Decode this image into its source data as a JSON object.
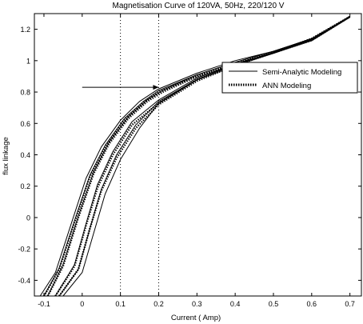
{
  "chart_data": {
    "type": "line",
    "title": "Magnetisation Curve of 120VA, 50Hz, 220/120 V",
    "xlabel": "Current ( Amp)",
    "ylabel": "flux linkage",
    "xlim": [
      -0.125,
      0.73
    ],
    "ylim": [
      -0.5,
      1.3
    ],
    "xticks": [
      -0.1,
      0,
      0.1,
      0.2,
      0.3,
      0.4,
      0.5,
      0.6,
      0.7
    ],
    "xtick_labels": [
      "-0.1",
      "0",
      "0.1",
      "0.2",
      "0.3",
      "0.4",
      "0.5",
      "0.6",
      "0.7"
    ],
    "yticks": [
      -0.4,
      -0.2,
      0,
      0.2,
      0.4,
      0.6,
      0.8,
      1,
      1.2
    ],
    "ytick_labels": [
      "-0.4",
      "-0.2",
      "0",
      "0.2",
      "0.4",
      "0.6",
      "0.8",
      "1",
      "1.2"
    ],
    "vlines": [
      0.1,
      0.2
    ],
    "annotation_arrow": {
      "from": [
        0,
        0.83
      ],
      "to": [
        0.2,
        0.83
      ]
    },
    "legend_position": "right",
    "grid": false,
    "series": [
      {
        "name": "Semi-Analytic Modeling",
        "style": "solid",
        "color": "#000000",
        "loops": [
          {
            "upper": [
              [
                -0.11,
                -0.5
              ],
              [
                -0.07,
                -0.35
              ],
              [
                -0.03,
                -0.05
              ],
              [
                0.01,
                0.25
              ],
              [
                0.05,
                0.45
              ],
              [
                0.1,
                0.62
              ],
              [
                0.15,
                0.74
              ],
              [
                0.2,
                0.82
              ],
              [
                0.3,
                0.92
              ],
              [
                0.4,
                1.0
              ],
              [
                0.5,
                1.06
              ],
              [
                0.6,
                1.14
              ],
              [
                0.7,
                1.28
              ]
            ],
            "lower": [
              [
                -0.05,
                -0.5
              ],
              [
                0.0,
                -0.35
              ],
              [
                0.03,
                -0.1
              ],
              [
                0.06,
                0.15
              ],
              [
                0.1,
                0.37
              ],
              [
                0.15,
                0.57
              ],
              [
                0.2,
                0.73
              ],
              [
                0.3,
                0.88
              ],
              [
                0.4,
                0.98
              ],
              [
                0.5,
                1.05
              ],
              [
                0.6,
                1.13
              ],
              [
                0.7,
                1.28
              ]
            ]
          },
          {
            "upper": [
              [
                -0.1,
                -0.5
              ],
              [
                -0.06,
                -0.32
              ],
              [
                -0.02,
                -0.02
              ],
              [
                0.02,
                0.27
              ],
              [
                0.06,
                0.46
              ],
              [
                0.11,
                0.63
              ],
              [
                0.16,
                0.74
              ],
              [
                0.2,
                0.81
              ],
              [
                0.3,
                0.91
              ],
              [
                0.4,
                0.99
              ],
              [
                0.5,
                1.06
              ],
              [
                0.6,
                1.14
              ],
              [
                0.7,
                1.28
              ]
            ],
            "lower": [
              [
                -0.06,
                -0.5
              ],
              [
                -0.01,
                -0.33
              ],
              [
                0.02,
                -0.07
              ],
              [
                0.05,
                0.18
              ],
              [
                0.09,
                0.4
              ],
              [
                0.14,
                0.59
              ],
              [
                0.2,
                0.74
              ],
              [
                0.3,
                0.88
              ],
              [
                0.4,
                0.98
              ],
              [
                0.5,
                1.05
              ],
              [
                0.6,
                1.13
              ],
              [
                0.7,
                1.28
              ]
            ]
          },
          {
            "upper": [
              [
                -0.09,
                -0.5
              ],
              [
                -0.05,
                -0.3
              ],
              [
                -0.01,
                0.01
              ],
              [
                0.03,
                0.29
              ],
              [
                0.07,
                0.48
              ],
              [
                0.12,
                0.64
              ],
              [
                0.17,
                0.75
              ],
              [
                0.21,
                0.81
              ],
              [
                0.3,
                0.91
              ],
              [
                0.4,
                0.99
              ],
              [
                0.5,
                1.06
              ],
              [
                0.6,
                1.14
              ],
              [
                0.7,
                1.28
              ]
            ],
            "lower": [
              [
                -0.07,
                -0.5
              ],
              [
                -0.02,
                -0.3
              ],
              [
                0.01,
                -0.04
              ],
              [
                0.04,
                0.21
              ],
              [
                0.08,
                0.42
              ],
              [
                0.13,
                0.61
              ],
              [
                0.2,
                0.75
              ],
              [
                0.3,
                0.89
              ],
              [
                0.4,
                0.98
              ],
              [
                0.5,
                1.05
              ],
              [
                0.6,
                1.13
              ],
              [
                0.7,
                1.28
              ]
            ]
          }
        ]
      },
      {
        "name": "ANN Modeling",
        "style": "dotted",
        "color": "#000000",
        "loops": [
          {
            "upper": [
              [
                -0.1,
                -0.5
              ],
              [
                -0.06,
                -0.33
              ],
              [
                -0.02,
                -0.03
              ],
              [
                0.02,
                0.26
              ],
              [
                0.06,
                0.45
              ],
              [
                0.11,
                0.62
              ],
              [
                0.16,
                0.73
              ],
              [
                0.2,
                0.8
              ],
              [
                0.3,
                0.9
              ],
              [
                0.4,
                0.98
              ],
              [
                0.5,
                1.05
              ],
              [
                0.6,
                1.14
              ],
              [
                0.7,
                1.28
              ]
            ],
            "lower": [
              [
                -0.06,
                -0.5
              ],
              [
                -0.01,
                -0.33
              ],
              [
                0.02,
                -0.07
              ],
              [
                0.05,
                0.17
              ],
              [
                0.09,
                0.38
              ],
              [
                0.14,
                0.57
              ],
              [
                0.2,
                0.72
              ],
              [
                0.3,
                0.87
              ],
              [
                0.4,
                0.97
              ],
              [
                0.5,
                1.05
              ],
              [
                0.6,
                1.13
              ],
              [
                0.7,
                1.28
              ]
            ]
          },
          {
            "upper": [
              [
                -0.09,
                -0.5
              ],
              [
                -0.05,
                -0.31
              ],
              [
                -0.01,
                0.0
              ],
              [
                0.03,
                0.28
              ],
              [
                0.07,
                0.47
              ],
              [
                0.12,
                0.63
              ],
              [
                0.17,
                0.74
              ],
              [
                0.21,
                0.8
              ],
              [
                0.3,
                0.9
              ],
              [
                0.4,
                0.98
              ],
              [
                0.5,
                1.05
              ],
              [
                0.6,
                1.14
              ],
              [
                0.7,
                1.28
              ]
            ],
            "lower": [
              [
                -0.07,
                -0.5
              ],
              [
                -0.02,
                -0.31
              ],
              [
                0.01,
                -0.05
              ],
              [
                0.04,
                0.19
              ],
              [
                0.08,
                0.4
              ],
              [
                0.13,
                0.59
              ],
              [
                0.2,
                0.73
              ],
              [
                0.3,
                0.88
              ],
              [
                0.4,
                0.97
              ],
              [
                0.5,
                1.05
              ],
              [
                0.6,
                1.13
              ],
              [
                0.7,
                1.28
              ]
            ]
          }
        ]
      }
    ]
  }
}
